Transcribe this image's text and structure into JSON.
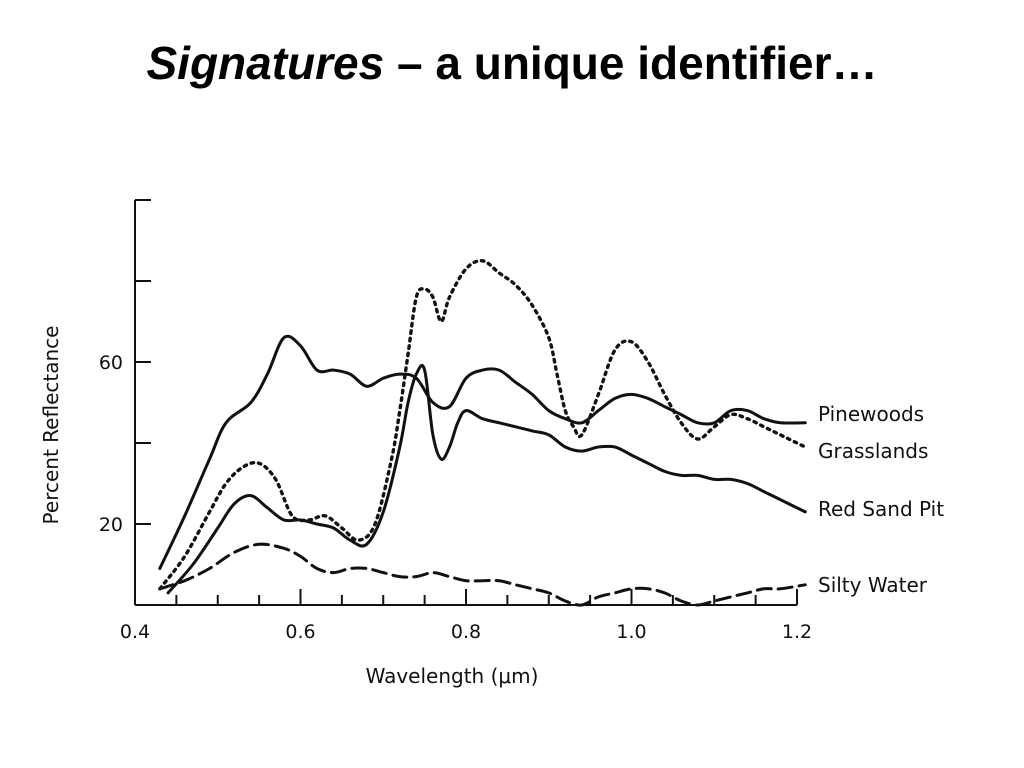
{
  "slide": {
    "title_italic": "Signatures",
    "title_rest": " – a unique identifier…"
  },
  "chart_data": {
    "type": "line",
    "title": "",
    "xlabel": "Wavelength (μm)",
    "ylabel": "Percent Reflectance",
    "xlim": [
      0.4,
      1.2
    ],
    "ylim": [
      0,
      100
    ],
    "x_ticks": [
      0.4,
      0.6,
      0.8,
      1.0,
      1.2
    ],
    "x_tick_labels": [
      "0.4",
      "0.6",
      "0.8",
      "1.0",
      "1.2"
    ],
    "y_minor_ticks": [
      0,
      20,
      40,
      60,
      80,
      100
    ],
    "y_tick_labels": [
      {
        "value": 20,
        "label": "20"
      },
      {
        "value": 60,
        "label": "60"
      }
    ],
    "grid": false,
    "legend_placement": "right, at end of each line",
    "series": [
      {
        "name": "Pinewoods",
        "style": "solid",
        "x": [
          0.43,
          0.46,
          0.49,
          0.51,
          0.54,
          0.56,
          0.58,
          0.6,
          0.62,
          0.64,
          0.66,
          0.68,
          0.7,
          0.72,
          0.74,
          0.76,
          0.78,
          0.8,
          0.82,
          0.84,
          0.86,
          0.88,
          0.9,
          0.92,
          0.94,
          0.96,
          0.98,
          1.0,
          1.02,
          1.04,
          1.06,
          1.08,
          1.1,
          1.12,
          1.14,
          1.16,
          1.18,
          1.21
        ],
        "y": [
          9,
          22,
          36,
          45,
          50,
          57,
          66,
          64,
          58,
          58,
          57,
          54,
          56,
          57,
          56,
          50,
          49,
          56,
          58,
          58,
          55,
          52,
          48,
          46,
          45,
          48,
          51,
          52,
          51,
          49,
          47,
          45,
          45,
          48,
          48,
          46,
          45,
          45
        ]
      },
      {
        "name": "Grasslands",
        "style": "dotted",
        "x": [
          0.43,
          0.46,
          0.49,
          0.51,
          0.53,
          0.55,
          0.57,
          0.59,
          0.61,
          0.63,
          0.65,
          0.67,
          0.69,
          0.71,
          0.72,
          0.73,
          0.74,
          0.75,
          0.76,
          0.77,
          0.78,
          0.8,
          0.82,
          0.84,
          0.86,
          0.88,
          0.9,
          0.91,
          0.92,
          0.93,
          0.94,
          0.96,
          0.98,
          1.0,
          1.02,
          1.04,
          1.06,
          1.08,
          1.1,
          1.12,
          1.14,
          1.16,
          1.18,
          1.21
        ],
        "y": [
          4,
          12,
          23,
          30,
          34,
          35,
          31,
          22,
          21,
          22,
          19,
          16,
          20,
          36,
          48,
          62,
          76,
          78,
          76,
          70,
          76,
          83,
          85,
          82,
          79,
          74,
          66,
          57,
          48,
          44,
          42,
          52,
          63,
          65,
          60,
          52,
          45,
          41,
          44,
          47,
          46,
          44,
          42,
          39
        ]
      },
      {
        "name": "Red Sand Pit",
        "style": "solid",
        "x": [
          0.44,
          0.47,
          0.5,
          0.52,
          0.54,
          0.56,
          0.58,
          0.6,
          0.62,
          0.64,
          0.66,
          0.68,
          0.7,
          0.72,
          0.73,
          0.74,
          0.75,
          0.76,
          0.77,
          0.78,
          0.79,
          0.8,
          0.82,
          0.84,
          0.86,
          0.88,
          0.9,
          0.92,
          0.94,
          0.96,
          0.98,
          1.0,
          1.02,
          1.04,
          1.06,
          1.08,
          1.1,
          1.12,
          1.14,
          1.16,
          1.18,
          1.21
        ],
        "y": [
          3,
          10,
          19,
          25,
          27,
          24,
          21,
          21,
          20,
          19,
          16,
          15,
          23,
          39,
          50,
          57,
          58,
          42,
          36,
          39,
          45,
          48,
          46,
          45,
          44,
          43,
          42,
          39,
          38,
          39,
          39,
          37,
          35,
          33,
          32,
          32,
          31,
          31,
          30,
          28,
          26,
          23
        ]
      },
      {
        "name": "Silty Water",
        "style": "dashed",
        "x": [
          0.43,
          0.46,
          0.49,
          0.52,
          0.55,
          0.58,
          0.6,
          0.62,
          0.64,
          0.66,
          0.68,
          0.7,
          0.72,
          0.74,
          0.76,
          0.78,
          0.8,
          0.82,
          0.84,
          0.86,
          0.88,
          0.9,
          0.92,
          0.94,
          0.96,
          0.98,
          1.0,
          1.02,
          1.04,
          1.06,
          1.08,
          1.1,
          1.12,
          1.14,
          1.16,
          1.18,
          1.21
        ],
        "y": [
          4,
          6,
          9,
          13,
          15,
          14,
          12,
          9,
          8,
          9,
          9,
          8,
          7,
          7,
          8,
          7,
          6,
          6,
          6,
          5,
          4,
          3,
          1,
          0,
          2,
          3,
          4,
          4,
          3,
          1,
          0,
          1,
          2,
          3,
          4,
          4,
          5
        ]
      }
    ]
  }
}
